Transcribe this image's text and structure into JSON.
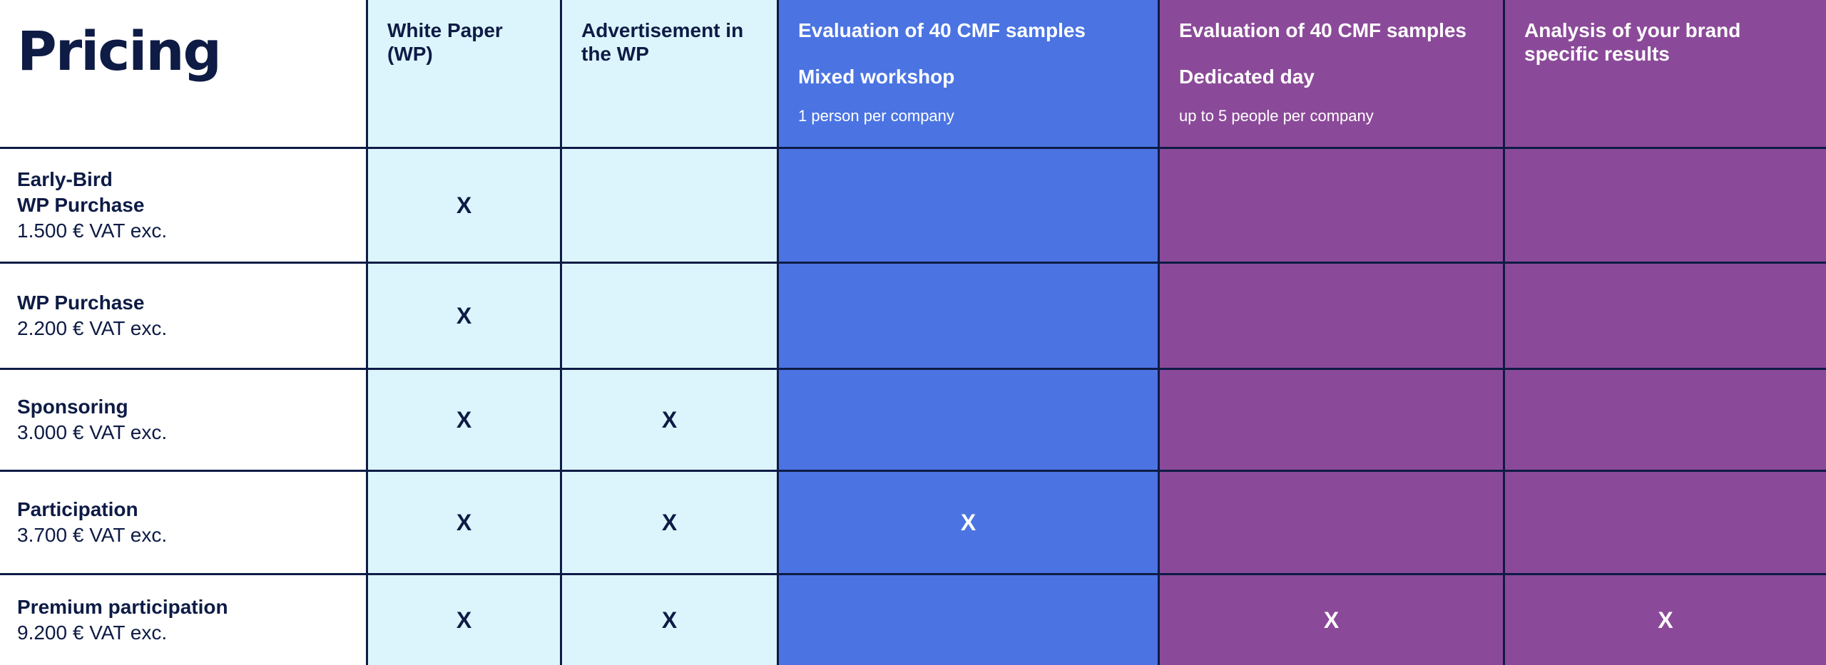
{
  "title": "Pricing",
  "columns": [
    {
      "label": "White Paper (WP)"
    },
    {
      "label": "Advertisement in the WP"
    },
    {
      "label": "Evaluation of 40 CMF samples",
      "sub": "Mixed workshop",
      "note": "1 person per company"
    },
    {
      "label": "Evaluation of 40 CMF samples",
      "sub": "Dedicated day",
      "note": "up to 5 people per company"
    },
    {
      "label": "Analysis of your brand specific results"
    }
  ],
  "rows": [
    {
      "name": "Early-Bird\nWP Purchase",
      "price": "1.500 € VAT exc.",
      "marks": [
        "X",
        "",
        "",
        "",
        ""
      ]
    },
    {
      "name": "WP Purchase",
      "price": "2.200 € VAT exc.",
      "marks": [
        "X",
        "",
        "",
        "",
        ""
      ]
    },
    {
      "name": "Sponsoring",
      "price": "3.000 € VAT exc.",
      "marks": [
        "X",
        "X",
        "",
        "",
        ""
      ]
    },
    {
      "name": "Participation",
      "price": "3.700 € VAT exc.",
      "marks": [
        "X",
        "X",
        "X",
        "",
        ""
      ]
    },
    {
      "name": "Premium participation",
      "price": "9.200 € VAT exc.",
      "marks": [
        "X",
        "X",
        "",
        "X",
        "X"
      ]
    }
  ],
  "colors": {
    "text_dark": "#0d1b45",
    "light_cyan": "#dcf5fd",
    "blue": "#4b74e2",
    "purple": "#8b4a99",
    "grid_line": "#0d1b45"
  }
}
